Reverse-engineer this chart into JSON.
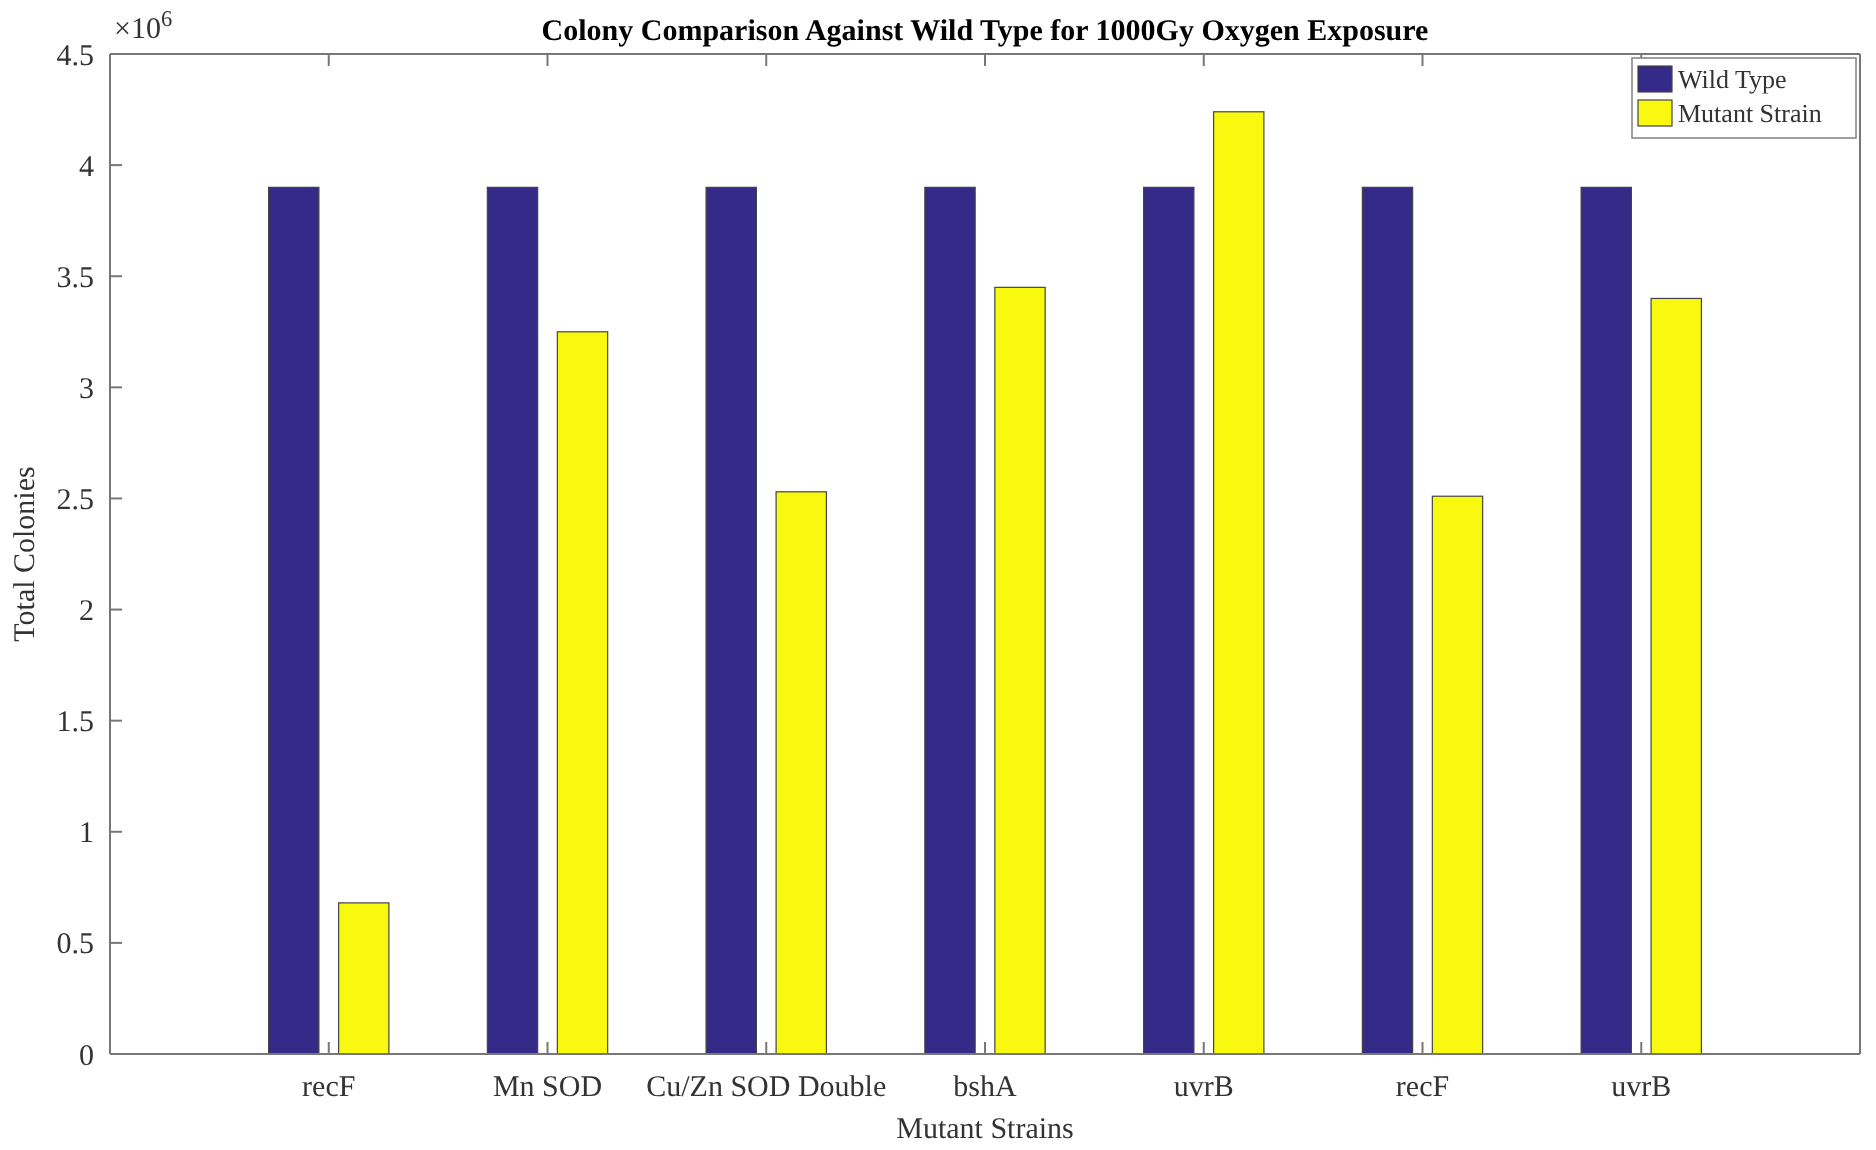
{
  "chart_data": {
    "type": "bar",
    "title": "Colony Comparison Against Wild Type for 1000Gy Oxygen Exposure",
    "xlabel": "Mutant Strains",
    "ylabel": "Total Colonies",
    "annotations": [
      "×10$^{6}$"
    ],
    "categories": [
      "recF",
      "Mn SOD",
      "Cu/Zn SOD Double",
      "bshA",
      "uvrB",
      "recF",
      "uvrB"
    ],
    "series": [
      {
        "name": "Wild Type",
        "color": "#352a87",
        "values": [
          3.9,
          3.9,
          3.9,
          3.9,
          3.9,
          3.9,
          3.9
        ]
      },
      {
        "name": "Mutant Strain",
        "color": "#f9f90f",
        "values": [
          0.68,
          3.25,
          2.53,
          3.45,
          4.24,
          2.51,
          3.4
        ]
      }
    ],
    "ylim": [
      0,
      4.5
    ],
    "yticks": [
      0,
      0.5,
      1,
      1.5,
      2,
      2.5,
      3,
      3.5,
      4,
      4.5
    ],
    "grid": false,
    "legend": "top right"
  }
}
